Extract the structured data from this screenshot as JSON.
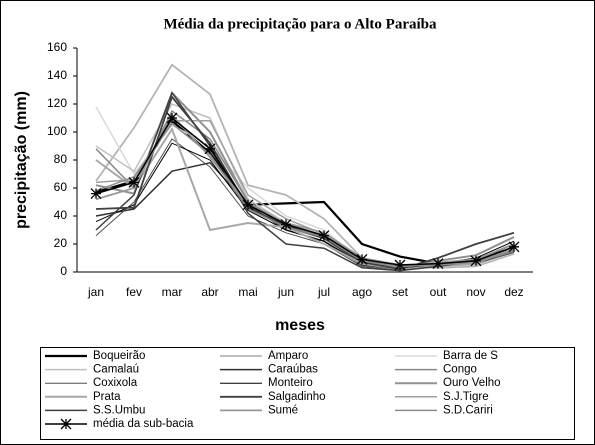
{
  "chart_data": {
    "type": "line",
    "title": "Média da precipitação para o Alto Paraíba",
    "x_label": "meses",
    "y_label": "precipitação (mm)",
    "categories": [
      "jan",
      "fev",
      "mar",
      "abr",
      "mai",
      "jun",
      "jul",
      "ago",
      "set",
      "out",
      "nov",
      "dez"
    ],
    "ylim": [
      0,
      160
    ],
    "yticks": [
      0,
      20,
      40,
      60,
      80,
      100,
      120,
      140,
      160
    ],
    "series": [
      {
        "name": "Boqueirão",
        "color": "#000000",
        "width": 2.2,
        "values": [
          57,
          65,
          108,
          85,
          48,
          49,
          50,
          20,
          11,
          6,
          7,
          15
        ]
      },
      {
        "name": "Amparo",
        "color": "#b4b4b4",
        "width": 1.8,
        "values": [
          65,
          103,
          148,
          127,
          62,
          55,
          38,
          10,
          4,
          3,
          4,
          13
        ]
      },
      {
        "name": "Barra de S",
        "color": "#d8d8d8",
        "width": 1.5,
        "values": [
          118,
          70,
          105,
          90,
          60,
          40,
          30,
          8,
          3,
          4,
          5,
          14
        ]
      },
      {
        "name": "Camalaú",
        "color": "#c0c0c0",
        "width": 1.5,
        "values": [
          90,
          72,
          120,
          110,
          52,
          35,
          25,
          7,
          3,
          5,
          5,
          16
        ]
      },
      {
        "name": "Caraúbas",
        "color": "#303030",
        "width": 1.5,
        "values": [
          40,
          45,
          72,
          78,
          48,
          30,
          22,
          5,
          2,
          6,
          8,
          20
        ]
      },
      {
        "name": "Congo",
        "color": "#888888",
        "width": 1.5,
        "values": [
          88,
          60,
          115,
          95,
          50,
          32,
          24,
          6,
          2,
          4,
          6,
          15
        ]
      },
      {
        "name": "Coxixola",
        "color": "#505050",
        "width": 1,
        "values": [
          26,
          50,
          95,
          75,
          40,
          28,
          20,
          4,
          1,
          5,
          6,
          14
        ]
      },
      {
        "name": "Monteiro",
        "color": "#000000",
        "width": 1,
        "values": [
          36,
          48,
          92,
          80,
          44,
          30,
          22,
          6,
          2,
          6,
          10,
          22
        ]
      },
      {
        "name": "Ouro Velho",
        "color": "#909090",
        "width": 2,
        "values": [
          62,
          56,
          128,
          100,
          50,
          34,
          26,
          8,
          3,
          8,
          12,
          25
        ]
      },
      {
        "name": "Prata",
        "color": "#a8a8a8",
        "width": 2,
        "values": [
          80,
          60,
          102,
          30,
          35,
          32,
          20,
          6,
          2,
          4,
          6,
          18
        ]
      },
      {
        "name": "Salgadinho",
        "color": "#404040",
        "width": 1.8,
        "values": [
          45,
          46,
          125,
          92,
          46,
          33,
          24,
          7,
          2,
          10,
          20,
          28
        ]
      },
      {
        "name": "S.J.Tigre",
        "color": "#a0a0a0",
        "width": 1.5,
        "values": [
          64,
          66,
          108,
          108,
          55,
          38,
          27,
          9,
          4,
          7,
          9,
          17
        ]
      },
      {
        "name": "S.S.Umbu",
        "color": "#404040",
        "width": 1.5,
        "values": [
          30,
          55,
          128,
          90,
          42,
          20,
          17,
          3,
          1,
          4,
          8,
          18
        ]
      },
      {
        "name": "Sumé",
        "color": "#989898",
        "width": 1.8,
        "values": [
          52,
          60,
          112,
          82,
          48,
          35,
          28,
          10,
          5,
          6,
          9,
          20
        ]
      },
      {
        "name": "S.D.Cariri",
        "color": "#8c8c8c",
        "width": 1.5,
        "values": [
          58,
          68,
          106,
          84,
          45,
          32,
          25,
          8,
          4,
          5,
          7,
          16
        ]
      },
      {
        "name": "média da sub-bacia",
        "color": "#000000",
        "width": 1.5,
        "marker": "asterisk",
        "values": [
          56,
          64,
          110,
          88,
          48,
          34,
          26,
          9,
          5,
          6,
          8,
          18
        ]
      }
    ]
  }
}
